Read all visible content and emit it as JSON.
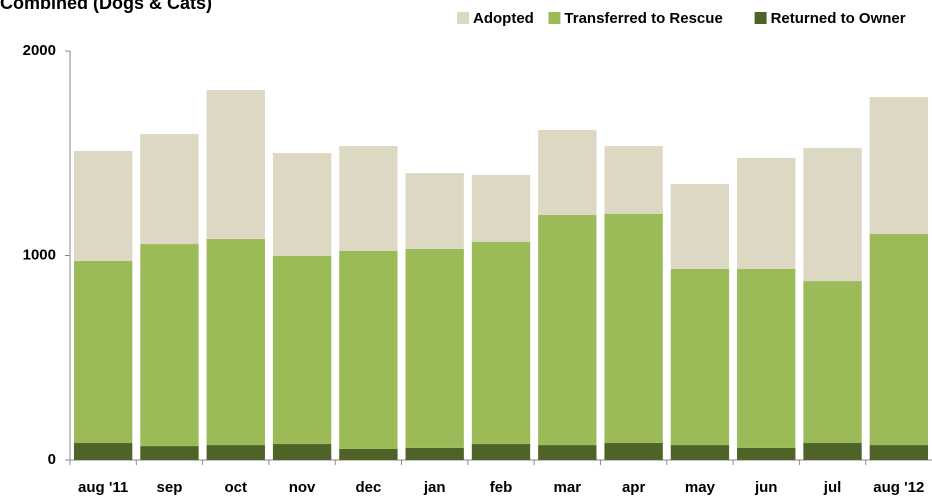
{
  "chart_data": {
    "type": "stacked_bar",
    "title": "Combined (Dogs & Cats)",
    "categories": [
      "aug '11",
      "sep",
      "oct",
      "nov",
      "dec",
      "jan",
      "feb",
      "mar",
      "apr",
      "may",
      "jun",
      "jul",
      "aug '12"
    ],
    "series": [
      {
        "name": "Adopted",
        "color": "#ddd8c4",
        "values": [
          538,
          538,
          728,
          503,
          513,
          371,
          328,
          416,
          332,
          416,
          543,
          651,
          670
        ]
      },
      {
        "name": "Transferred to Rescue",
        "color": "#9bbb59",
        "values": [
          890,
          988,
          1008,
          920,
          968,
          973,
          988,
          1125,
          1120,
          861,
          875,
          792,
          1032
        ]
      },
      {
        "name": "Returned to Owner",
        "color": "#4f6228",
        "values": [
          83,
          68,
          73,
          78,
          54,
          59,
          78,
          73,
          83,
          73,
          59,
          83,
          73
        ]
      }
    ],
    "ylim": [
      0,
      2000
    ],
    "yticks": [
      0,
      1000,
      2000
    ],
    "grid": false,
    "legend": "top-right"
  }
}
